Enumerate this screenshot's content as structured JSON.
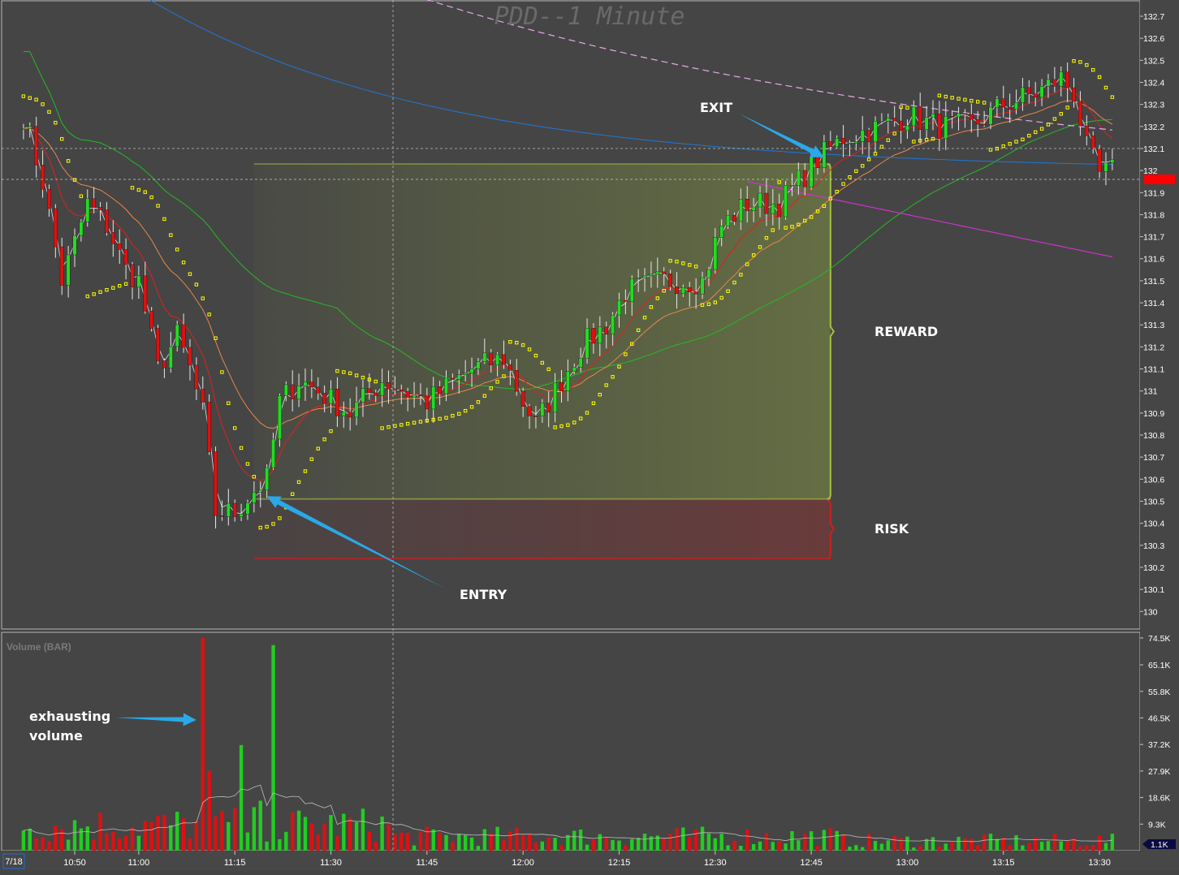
{
  "chart_data": [
    {
      "type": "candlestick",
      "title": "PDD--1 Minute",
      "y_ticks": [
        "132.7",
        "132.6",
        "132.5",
        "132.4",
        "132.3",
        "132.2",
        "132.1",
        "132",
        "131.9",
        "131.8",
        "131.7",
        "131.6",
        "131.5",
        "131.4",
        "131.3",
        "131.2",
        "131.1",
        "131",
        "130.9",
        "130.8",
        "130.7",
        "130.6",
        "130.5",
        "130.4",
        "130.3",
        "130.2",
        "130.1",
        "130"
      ],
      "ylim": [
        129.92,
        132.77
      ],
      "x_ticks": [
        "10:50",
        "11:00",
        "11:15",
        "11:30",
        "11:45",
        "12:00",
        "12:15",
        "12:30",
        "12:45",
        "13:00",
        "13:15",
        "13:30"
      ],
      "date_label": "7/18",
      "current_price_marker": {
        "value": 131.96,
        "color": "#ff0000"
      },
      "close_anchors": [
        {
          "time": "10:42",
          "price": 132.25
        },
        {
          "time": "10:45",
          "price": 131.95
        },
        {
          "time": "10:48",
          "price": 131.5
        },
        {
          "time": "10:52",
          "price": 131.85
        },
        {
          "time": "10:55",
          "price": 131.75
        },
        {
          "time": "10:58",
          "price": 131.55
        },
        {
          "time": "11:00",
          "price": 131.5
        },
        {
          "time": "11:03",
          "price": 131.1
        },
        {
          "time": "11:06",
          "price": 131.25
        },
        {
          "time": "11:08",
          "price": 131.1
        },
        {
          "time": "11:10",
          "price": 130.9
        },
        {
          "time": "11:12",
          "price": 130.45
        },
        {
          "time": "11:15",
          "price": 130.45
        },
        {
          "time": "11:18",
          "price": 130.55
        },
        {
          "time": "11:20",
          "price": 130.6
        },
        {
          "time": "11:22",
          "price": 130.95
        },
        {
          "time": "11:25",
          "price": 131.05
        },
        {
          "time": "11:28",
          "price": 131.0
        },
        {
          "time": "11:33",
          "price": 130.9
        },
        {
          "time": "11:38",
          "price": 131.05
        },
        {
          "time": "11:45",
          "price": 130.95
        },
        {
          "time": "11:52",
          "price": 131.1
        },
        {
          "time": "11:57",
          "price": 131.15
        },
        {
          "time": "12:00",
          "price": 130.95
        },
        {
          "time": "12:02",
          "price": 130.85
        },
        {
          "time": "12:05",
          "price": 131.0
        },
        {
          "time": "12:09",
          "price": 131.2
        },
        {
          "time": "12:13",
          "price": 131.3
        },
        {
          "time": "12:16",
          "price": 131.45
        },
        {
          "time": "12:22",
          "price": 131.5
        },
        {
          "time": "12:28",
          "price": 131.5
        },
        {
          "time": "12:31",
          "price": 131.75
        },
        {
          "time": "12:35",
          "price": 131.85
        },
        {
          "time": "12:40",
          "price": 131.85
        },
        {
          "time": "12:43",
          "price": 131.95
        },
        {
          "time": "12:46",
          "price": 132.05
        },
        {
          "time": "12:50",
          "price": 132.15
        },
        {
          "time": "12:56",
          "price": 132.2
        },
        {
          "time": "13:00",
          "price": 132.25
        },
        {
          "time": "13:05",
          "price": 132.2
        },
        {
          "time": "13:10",
          "price": 132.2
        },
        {
          "time": "13:15",
          "price": 132.3
        },
        {
          "time": "13:20",
          "price": 132.35
        },
        {
          "time": "13:24",
          "price": 132.42
        },
        {
          "time": "13:26",
          "price": 132.35
        },
        {
          "time": "13:28",
          "price": 132.1
        },
        {
          "time": "13:30",
          "price": 131.98
        },
        {
          "time": "13:32",
          "price": 132.0
        }
      ],
      "lines": [
        {
          "name": "EMA fast (white)",
          "color": "#e0e0e0"
        },
        {
          "name": "EMA 9 (red)",
          "color": "#e02020"
        },
        {
          "name": "EMA 20 (orange)",
          "color": "#e8874a"
        },
        {
          "name": "SMA 50 (green)",
          "color": "#22bb22"
        },
        {
          "name": "SMA 200 (blue)",
          "color": "#1e78d8"
        },
        {
          "name": "VWAP (pink dashed)",
          "color": "#e6a8e6"
        },
        {
          "name": "SMA (magenta)",
          "color": "#cc33cc"
        },
        {
          "name": "Parabolic SAR",
          "color": "#ffff00"
        }
      ],
      "trade_zones": {
        "entry_price": 130.51,
        "target_price": 132.03,
        "stop_price": 130.24,
        "start_time": "11:18",
        "end_time": "12:48",
        "reward_color": "#a4c140",
        "risk_color": "#cc2020"
      },
      "annotations": [
        {
          "text": "EXIT",
          "time": "12:47",
          "price": 132.06
        },
        {
          "text": "ENTRY",
          "time": "11:19",
          "price": 130.53
        },
        {
          "text": "REWARD"
        },
        {
          "text": "RISK"
        }
      ]
    },
    {
      "type": "bar",
      "title": "Volume (BAR)",
      "y_ticks": [
        "74.5K",
        "65.1K",
        "55.8K",
        "46.5K",
        "37.2K",
        "27.9K",
        "18.6K",
        "9.3K"
      ],
      "ylim": [
        0,
        74500
      ],
      "last_value_label": "1.1K",
      "spikes": [
        {
          "time": "11:10",
          "value": 74500,
          "color": "red"
        },
        {
          "time": "11:11",
          "value": 28000,
          "color": "red"
        },
        {
          "time": "11:16",
          "value": 37000,
          "color": "green"
        },
        {
          "time": "11:19",
          "value": 17500,
          "color": "green"
        },
        {
          "time": "11:21",
          "value": 72000,
          "color": "green"
        }
      ],
      "annotation": {
        "text": [
          "exhausting",
          "volume"
        ],
        "target_time": "11:10"
      }
    }
  ]
}
